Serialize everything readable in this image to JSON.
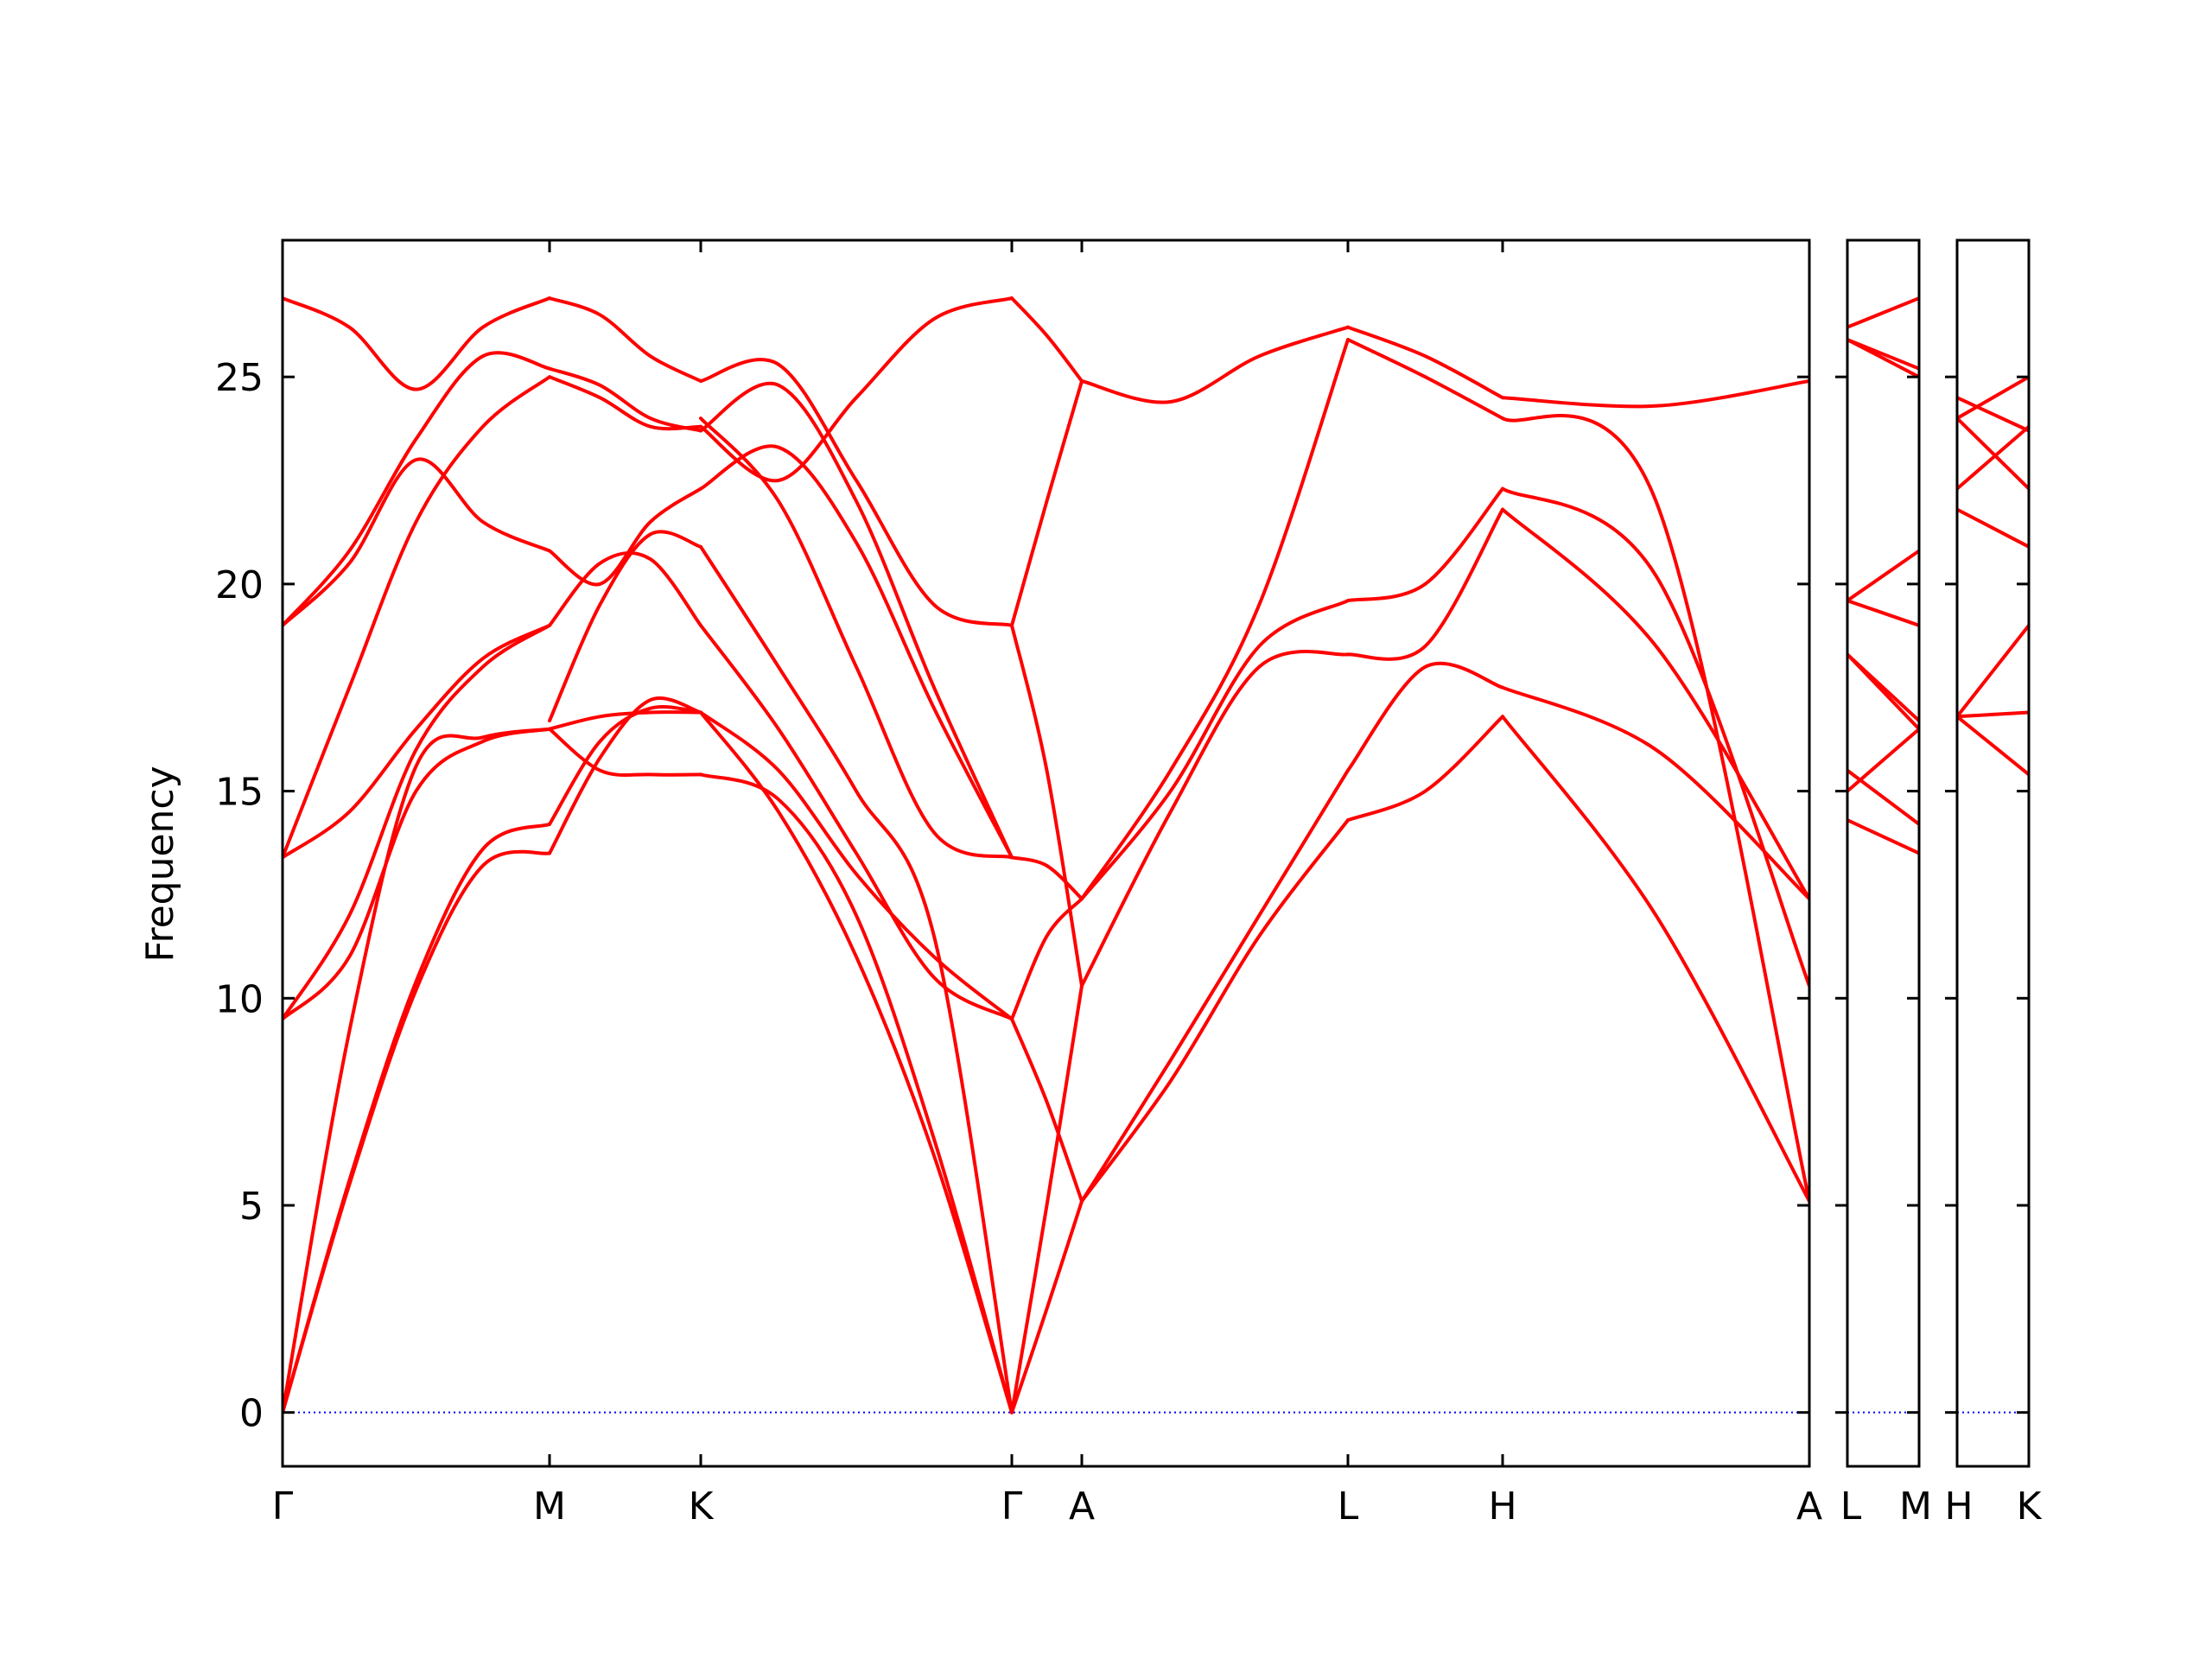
{
  "chart_data": {
    "type": "line",
    "title": "",
    "ylabel": "Frequency",
    "xlabel": "",
    "ylim": [
      -1.3,
      28.3
    ],
    "y_ticks": [
      0,
      5,
      10,
      15,
      20,
      25
    ],
    "grid": false,
    "legend": "none",
    "colors": {
      "bands": "#ff0000",
      "zero_line": "#0000ff",
      "axes": "#000000"
    },
    "panels": [
      {
        "labels": [
          "Γ",
          "M",
          "K",
          "Γ",
          "A",
          "L",
          "H",
          "A"
        ],
        "segments": 7
      },
      {
        "labels": [
          "L",
          "M"
        ],
        "segments": 1
      },
      {
        "labels": [
          "H",
          "K"
        ],
        "segments": 1
      }
    ],
    "segments": [
      {
        "path": [
          "Γ",
          "M"
        ],
        "bands": [
          [
            0,
            5.5,
            10.2,
            13.2,
            13.5
          ],
          [
            0,
            5.6,
            10.4,
            13.6,
            14.2
          ],
          [
            0,
            9.2,
            15.6,
            16.3,
            16.5
          ],
          [
            9.5,
            11.0,
            15.0,
            16.2,
            16.5
          ],
          [
            9.5,
            12.0,
            16.0,
            18.0,
            19.0
          ],
          [
            13.4,
            14.5,
            16.5,
            18.2,
            19.0
          ],
          [
            13.4,
            17.5,
            21.5,
            23.8,
            25.0
          ],
          [
            19.0,
            20.5,
            23.0,
            21.5,
            20.8
          ],
          [
            19.0,
            20.8,
            23.5,
            25.5,
            25.2
          ],
          [
            26.9,
            26.2,
            24.7,
            26.2,
            26.9
          ]
        ]
      },
      {
        "path": [
          "M",
          "K"
        ],
        "bands": [
          [
            13.5,
            15.8,
            17.2,
            16.9
          ],
          [
            14.2,
            16.2,
            17.0,
            16.9
          ],
          [
            16.5,
            15.5,
            15.4,
            15.4
          ],
          [
            16.5,
            16.8,
            16.9,
            16.9
          ],
          [
            16.7,
            19.5,
            21.2,
            20.9
          ],
          [
            19.0,
            20.5,
            20.6,
            19.0
          ],
          [
            20.8,
            20.0,
            21.5,
            22.3
          ],
          [
            25.0,
            24.5,
            23.8,
            23.8
          ],
          [
            25.2,
            24.8,
            24.0,
            23.7
          ],
          [
            26.9,
            26.5,
            25.5,
            24.9
          ]
        ]
      },
      {
        "path": [
          "K",
          "Γ"
        ],
        "bands": [
          [
            16.9,
            14.5,
            11.0,
            6.2,
            0
          ],
          [
            15.4,
            14.8,
            12.0,
            6.6,
            0
          ],
          [
            16.9,
            15.5,
            13.0,
            11.0,
            9.5
          ],
          [
            19.0,
            16.5,
            13.5,
            10.5,
            9.5
          ],
          [
            20.9,
            18.0,
            15.0,
            11.5,
            0
          ],
          [
            22.3,
            23.3,
            21.0,
            17.0,
            13.4
          ],
          [
            23.7,
            24.8,
            22.0,
            17.5,
            13.4
          ],
          [
            23.8,
            22.5,
            24.5,
            26.4,
            26.9
          ],
          [
            24.0,
            22.0,
            18.0,
            14.0,
            13.4
          ],
          [
            24.9,
            25.3,
            22.5,
            19.5,
            19.0
          ]
        ]
      },
      {
        "path": [
          "Γ",
          "A"
        ],
        "bands": [
          [
            0,
            2.5,
            5.1
          ],
          [
            0,
            5.0,
            10.3
          ],
          [
            9.5,
            11.5,
            12.4
          ],
          [
            9.5,
            7.5,
            5.1
          ],
          [
            13.4,
            13.2,
            12.4
          ],
          [
            19.0,
            15.5,
            10.3
          ],
          [
            19.0,
            22.0,
            24.9
          ],
          [
            26.9,
            26.0,
            24.9
          ]
        ]
      },
      {
        "path": [
          "A",
          "L"
        ],
        "bands": [
          [
            5.1,
            8.0,
            11.5,
            14.3
          ],
          [
            5.1,
            8.5,
            12.0,
            15.5
          ],
          [
            10.3,
            14.5,
            18.0,
            18.3
          ],
          [
            12.4,
            15.0,
            18.5,
            19.6
          ],
          [
            12.4,
            15.5,
            19.5,
            25.9
          ],
          [
            24.9,
            24.4,
            25.5,
            26.2
          ]
        ]
      },
      {
        "path": [
          "L",
          "H"
        ],
        "bands": [
          [
            14.3,
            15.0,
            16.8
          ],
          [
            15.5,
            18.0,
            17.5
          ],
          [
            18.3,
            18.5,
            21.8
          ],
          [
            19.6,
            20.0,
            22.3
          ],
          [
            25.9,
            25.0,
            24.0
          ],
          [
            26.2,
            25.5,
            24.5
          ]
        ]
      },
      {
        "path": [
          "H",
          "A"
        ],
        "bands": [
          [
            16.8,
            12.0,
            5.1
          ],
          [
            17.5,
            16.0,
            12.4
          ],
          [
            21.8,
            18.5,
            12.4
          ],
          [
            22.3,
            20.2,
            10.3
          ],
          [
            24.0,
            22.0,
            5.1
          ],
          [
            24.5,
            24.3,
            24.9
          ]
        ]
      },
      {
        "path": [
          "L",
          "M"
        ],
        "bands": [
          [
            14.3,
            13.5
          ],
          [
            15.5,
            14.2
          ],
          [
            15.0,
            16.5
          ],
          [
            18.3,
            16.5
          ],
          [
            18.3,
            16.7
          ],
          [
            19.6,
            19.0
          ],
          [
            19.6,
            20.8
          ],
          [
            25.9,
            25.2
          ],
          [
            25.9,
            25.0
          ],
          [
            26.2,
            26.9
          ]
        ]
      },
      {
        "path": [
          "H",
          "K"
        ],
        "bands": [
          [
            16.8,
            16.9
          ],
          [
            16.8,
            15.4
          ],
          [
            16.8,
            19.0
          ],
          [
            21.8,
            20.9
          ],
          [
            22.3,
            23.8
          ],
          [
            24.0,
            22.3
          ],
          [
            24.0,
            25.0
          ],
          [
            24.5,
            23.7
          ]
        ]
      }
    ]
  }
}
